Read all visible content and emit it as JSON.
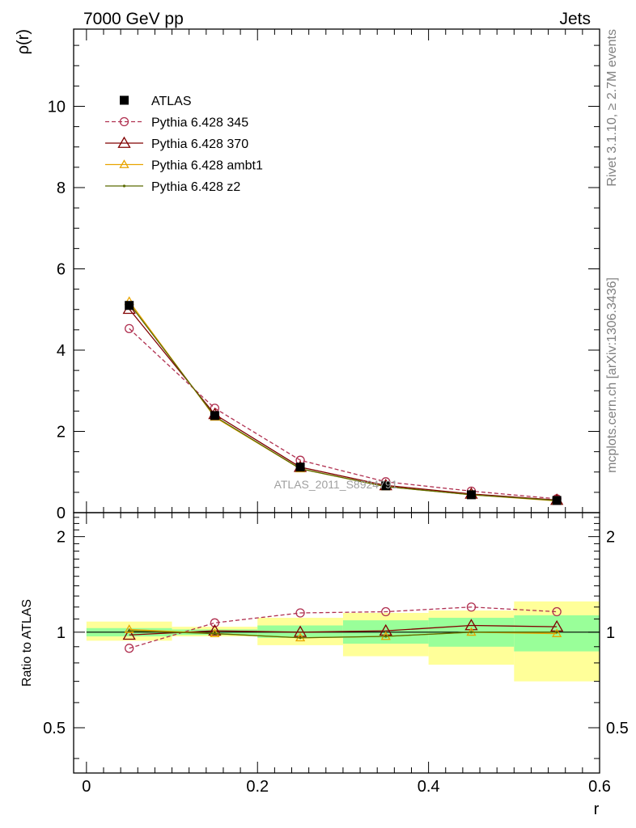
{
  "header": {
    "left_label": "7000 GeV pp",
    "right_label": "Jets"
  },
  "side_labels": {
    "rivet": "Rivet 3.1.10, ≥ 2.7M events",
    "mcplots": "mcplots.cern.ch [arXiv:1306.3436]"
  },
  "watermark": "ATLAS_2011_S8924791",
  "chart_data": [
    {
      "type": "line",
      "panel": "main",
      "ylabel": "ρ(r)",
      "xlabel": "",
      "xlim": [
        -0.015,
        0.6
      ],
      "ylim": [
        0,
        11.9
      ],
      "y_ticks": [
        0,
        2,
        4,
        6,
        8,
        10
      ],
      "y_tick_labels": [
        "0",
        "2",
        "4",
        "6",
        "8",
        "10"
      ],
      "legend_position": "top-left",
      "x": [
        0.05,
        0.15,
        0.25,
        0.35,
        0.45,
        0.55
      ],
      "series": [
        {
          "name": "ATLAS",
          "values": [
            5.1,
            2.39,
            1.12,
            0.66,
            0.44,
            0.3
          ],
          "color": "#000000",
          "marker": "square",
          "line": "none"
        },
        {
          "name": "Pythia 6.428 345",
          "values": [
            4.53,
            2.57,
            1.29,
            0.76,
            0.53,
            0.34
          ],
          "color": "#b03050",
          "marker": "open-circle",
          "line": "dashed"
        },
        {
          "name": "Pythia 6.428 370",
          "values": [
            5.01,
            2.42,
            1.12,
            0.67,
            0.46,
            0.31
          ],
          "color": "#800000",
          "marker": "open-triangle",
          "line": "solid"
        },
        {
          "name": "Pythia 6.428 ambt1",
          "values": [
            5.2,
            2.35,
            1.08,
            0.64,
            0.44,
            0.29
          ],
          "color": "#e8a400",
          "marker": "open-triangle",
          "line": "solid"
        },
        {
          "name": "Pythia 6.428 z2",
          "values": [
            5.15,
            2.37,
            1.08,
            0.64,
            0.44,
            0.3
          ],
          "color": "#5a6a00",
          "marker": "dot",
          "line": "solid"
        }
      ]
    },
    {
      "type": "line",
      "panel": "ratio",
      "ylabel": "Ratio to ATLAS",
      "xlabel": "r",
      "xlim": [
        -0.015,
        0.6
      ],
      "ylim": [
        0.36,
        2.38
      ],
      "y_ticks": [
        0.5,
        1,
        2
      ],
      "y_tick_labels": [
        "0.5",
        "1",
        "2"
      ],
      "x_ticks": [
        0,
        0.2,
        0.4,
        0.6
      ],
      "x_tick_labels": [
        "0",
        "0.2",
        "0.4",
        "0.6"
      ],
      "x": [
        0.05,
        0.15,
        0.25,
        0.35,
        0.45,
        0.55
      ],
      "bins": [
        [
          0,
          0.1
        ],
        [
          0.1,
          0.2
        ],
        [
          0.2,
          0.3
        ],
        [
          0.3,
          0.4
        ],
        [
          0.4,
          0.5
        ],
        [
          0.5,
          0.6
        ]
      ],
      "band_total": [
        [
          0.94,
          1.08
        ],
        [
          0.97,
          1.04
        ],
        [
          0.91,
          1.11
        ],
        [
          0.84,
          1.15
        ],
        [
          0.79,
          1.17
        ],
        [
          0.7,
          1.25
        ]
      ],
      "band_stat": [
        [
          0.97,
          1.03
        ],
        [
          0.98,
          1.02
        ],
        [
          0.96,
          1.05
        ],
        [
          0.92,
          1.09
        ],
        [
          0.9,
          1.11
        ],
        [
          0.87,
          1.13
        ]
      ],
      "series": [
        {
          "name": "Pythia 6.428 345",
          "values": [
            0.89,
            1.07,
            1.15,
            1.16,
            1.2,
            1.16
          ],
          "color": "#b03050",
          "marker": "open-circle",
          "line": "dashed"
        },
        {
          "name": "Pythia 6.428 370",
          "values": [
            0.98,
            1.01,
            1.0,
            1.01,
            1.05,
            1.04
          ],
          "color": "#800000",
          "marker": "open-triangle",
          "line": "solid"
        },
        {
          "name": "Pythia 6.428 ambt1",
          "values": [
            1.02,
            0.99,
            0.96,
            0.97,
            1.0,
            0.99
          ],
          "color": "#e8a400",
          "marker": "open-triangle",
          "line": "solid"
        },
        {
          "name": "Pythia 6.428 z2",
          "values": [
            1.01,
            0.99,
            0.96,
            0.97,
            1.0,
            1.0
          ],
          "color": "#5a6a00",
          "marker": "dot",
          "line": "solid"
        }
      ]
    }
  ]
}
